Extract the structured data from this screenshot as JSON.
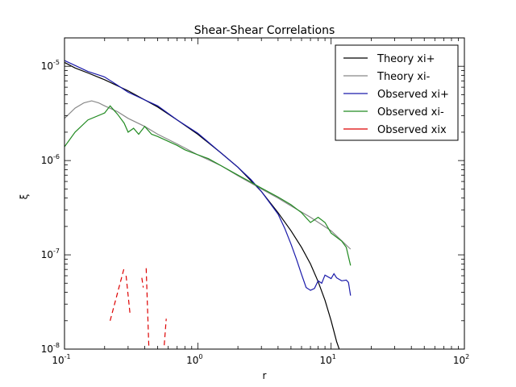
{
  "chart_data": {
    "type": "line",
    "title": "Shear-Shear Correlations",
    "xlabel": "r",
    "ylabel": "ξ",
    "xscale": "log",
    "yscale": "log",
    "xlim": [
      0.1,
      100
    ],
    "ylim": [
      1e-08,
      2e-05
    ],
    "x_ticks": [
      {
        "base": "10",
        "exp": "-1",
        "value": 0.1
      },
      {
        "base": "10",
        "exp": "0",
        "value": 1
      },
      {
        "base": "10",
        "exp": "1",
        "value": 10
      },
      {
        "base": "10",
        "exp": "2",
        "value": 100
      }
    ],
    "y_ticks": [
      {
        "base": "10",
        "exp": "-8",
        "value": 1e-08
      },
      {
        "base": "10",
        "exp": "-7",
        "value": 1e-07
      },
      {
        "base": "10",
        "exp": "-6",
        "value": 1e-06
      },
      {
        "base": "10",
        "exp": "-5",
        "value": 1e-05
      }
    ],
    "legend_position": "top-right",
    "series": [
      {
        "name": "Theory xi+",
        "color": "#000000",
        "style": "solid",
        "points": [
          [
            0.1,
            1.1e-05
          ],
          [
            0.12,
            9.6e-06
          ],
          [
            0.15,
            8.5e-06
          ],
          [
            0.2,
            7.2e-06
          ],
          [
            0.3,
            5.5e-06
          ],
          [
            0.5,
            3.7e-06
          ],
          [
            0.7,
            2.7e-06
          ],
          [
            1.0,
            1.9e-06
          ],
          [
            1.5,
            1.2e-06
          ],
          [
            2.0,
            8.5e-07
          ],
          [
            3.0,
            4.7e-07
          ],
          [
            4.0,
            2.8e-07
          ],
          [
            5.0,
            1.8e-07
          ],
          [
            6.0,
            1.2e-07
          ],
          [
            7.0,
            8e-08
          ],
          [
            8.0,
            5.2e-08
          ],
          [
            9.0,
            3.3e-08
          ],
          [
            10.0,
            2e-08
          ],
          [
            11.0,
            1.2e-08
          ],
          [
            11.5,
            1e-08
          ]
        ]
      },
      {
        "name": "Theory xi-",
        "color": "#888888",
        "style": "solid",
        "points": [
          [
            0.1,
            2.8e-06
          ],
          [
            0.12,
            3.6e-06
          ],
          [
            0.14,
            4.1e-06
          ],
          [
            0.16,
            4.3e-06
          ],
          [
            0.18,
            4.1e-06
          ],
          [
            0.2,
            3.8e-06
          ],
          [
            0.25,
            3.3e-06
          ],
          [
            0.3,
            2.8e-06
          ],
          [
            0.4,
            2.3e-06
          ],
          [
            0.5,
            1.9e-06
          ],
          [
            0.7,
            1.5e-06
          ],
          [
            1.0,
            1.15e-06
          ],
          [
            1.5,
            8.8e-07
          ],
          [
            2.0,
            6.9e-07
          ],
          [
            3.0,
            5e-07
          ],
          [
            4.0,
            4e-07
          ],
          [
            5.0,
            3.3e-07
          ],
          [
            7.0,
            2.5e-07
          ],
          [
            10.0,
            1.8e-07
          ],
          [
            14.0,
            1.15e-07
          ]
        ]
      },
      {
        "name": "Observed xi+",
        "color": "#1a1aaa",
        "style": "solid",
        "points": [
          [
            0.1,
            1.15e-05
          ],
          [
            0.12,
            1.02e-05
          ],
          [
            0.15,
            8.8e-06
          ],
          [
            0.18,
            8.1e-06
          ],
          [
            0.2,
            7.7e-06
          ],
          [
            0.25,
            6.3e-06
          ],
          [
            0.3,
            5.3e-06
          ],
          [
            0.35,
            4.8e-06
          ],
          [
            0.4,
            4.4e-06
          ],
          [
            0.5,
            3.8e-06
          ],
          [
            0.7,
            2.7e-06
          ],
          [
            1.0,
            1.95e-06
          ],
          [
            1.5,
            1.2e-06
          ],
          [
            2.0,
            8.5e-07
          ],
          [
            2.5,
            6.3e-07
          ],
          [
            3.0,
            4.7e-07
          ],
          [
            4.0,
            2.7e-07
          ],
          [
            4.5,
            1.9e-07
          ],
          [
            5.0,
            1.3e-07
          ],
          [
            5.5,
            9e-08
          ],
          [
            6.0,
            6.2e-08
          ],
          [
            6.5,
            4.5e-08
          ],
          [
            7.0,
            4.2e-08
          ],
          [
            7.5,
            4.4e-08
          ],
          [
            8.0,
            5.3e-08
          ],
          [
            8.5,
            5e-08
          ],
          [
            9.0,
            6.1e-08
          ],
          [
            10.0,
            5.6e-08
          ],
          [
            10.5,
            6.3e-08
          ],
          [
            11.0,
            5.7e-08
          ],
          [
            12.0,
            5.3e-08
          ],
          [
            13.0,
            5.4e-08
          ],
          [
            13.5,
            5.1e-08
          ],
          [
            14.0,
            3.7e-08
          ]
        ]
      },
      {
        "name": "Observed xi-",
        "color": "#228b22",
        "style": "solid",
        "points": [
          [
            0.1,
            1.4e-06
          ],
          [
            0.12,
            2e-06
          ],
          [
            0.15,
            2.7e-06
          ],
          [
            0.2,
            3.2e-06
          ],
          [
            0.22,
            3.8e-06
          ],
          [
            0.25,
            3.1e-06
          ],
          [
            0.28,
            2.5e-06
          ],
          [
            0.3,
            2e-06
          ],
          [
            0.33,
            2.2e-06
          ],
          [
            0.36,
            1.9e-06
          ],
          [
            0.4,
            2.3e-06
          ],
          [
            0.45,
            1.9e-06
          ],
          [
            0.5,
            1.8e-06
          ],
          [
            0.6,
            1.6e-06
          ],
          [
            0.7,
            1.45e-06
          ],
          [
            0.8,
            1.3e-06
          ],
          [
            1.0,
            1.15e-06
          ],
          [
            1.2,
            1.05e-06
          ],
          [
            1.5,
            8.8e-07
          ],
          [
            2.0,
            7e-07
          ],
          [
            2.5,
            5.9e-07
          ],
          [
            3.0,
            5.1e-07
          ],
          [
            4.0,
            4.1e-07
          ],
          [
            5.0,
            3.4e-07
          ],
          [
            6.0,
            2.8e-07
          ],
          [
            7.0,
            2.2e-07
          ],
          [
            8.0,
            2.5e-07
          ],
          [
            9.0,
            2.2e-07
          ],
          [
            10.0,
            1.7e-07
          ],
          [
            12.0,
            1.4e-07
          ],
          [
            13.0,
            1.2e-07
          ],
          [
            14.0,
            7.7e-08
          ]
        ]
      },
      {
        "name": "Observed xix",
        "color": "#dd0000",
        "style": "dashed",
        "segments": [
          [
            [
              0.22,
              2e-08
            ],
            [
              0.28,
              7.2e-08
            ]
          ],
          [
            [
              0.29,
              6e-08
            ],
            [
              0.31,
              2.4e-08
            ]
          ],
          [
            [
              0.38,
              5.7e-08
            ],
            [
              0.39,
              4.5e-08
            ]
          ],
          [
            [
              0.41,
              7.2e-08
            ],
            [
              0.43,
              1e-08
            ]
          ],
          [
            [
              0.56,
              1.1e-08
            ],
            [
              0.58,
              2.1e-08
            ]
          ]
        ]
      }
    ]
  }
}
